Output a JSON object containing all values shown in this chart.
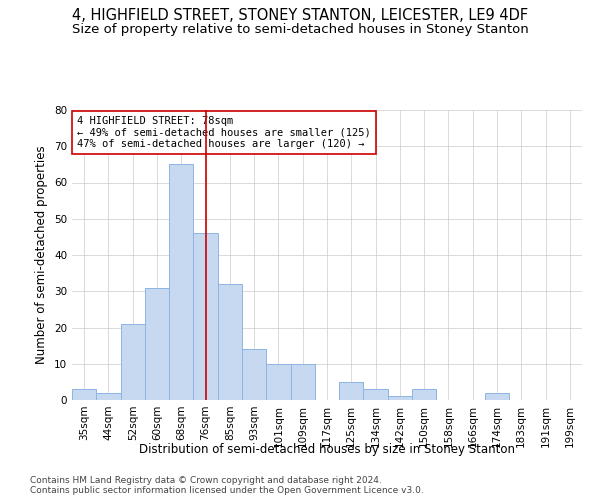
{
  "title_line1": "4, HIGHFIELD STREET, STONEY STANTON, LEICESTER, LE9 4DF",
  "title_line2": "Size of property relative to semi-detached houses in Stoney Stanton",
  "xlabel": "Distribution of semi-detached houses by size in Stoney Stanton",
  "ylabel": "Number of semi-detached properties",
  "categories": [
    "35sqm",
    "44sqm",
    "52sqm",
    "60sqm",
    "68sqm",
    "76sqm",
    "85sqm",
    "93sqm",
    "101sqm",
    "109sqm",
    "117sqm",
    "125sqm",
    "134sqm",
    "142sqm",
    "150sqm",
    "158sqm",
    "166sqm",
    "174sqm",
    "183sqm",
    "191sqm",
    "199sqm"
  ],
  "values": [
    3,
    2,
    21,
    31,
    65,
    46,
    32,
    14,
    10,
    10,
    0,
    5,
    3,
    1,
    3,
    0,
    0,
    2,
    0,
    0,
    0
  ],
  "bar_color": "#c6d9f0",
  "bar_edge_color": "#8db4e2",
  "bar_width": 1.0,
  "ylim": [
    0,
    80
  ],
  "yticks": [
    0,
    10,
    20,
    30,
    40,
    50,
    60,
    70,
    80
  ],
  "property_bin_index": 5,
  "annotation_line1": "4 HIGHFIELD STREET: 78sqm",
  "annotation_line2": "← 49% of semi-detached houses are smaller (125)",
  "annotation_line3": "47% of semi-detached houses are larger (120) →",
  "vline_color": "#cc0000",
  "annotation_box_color": "#ffffff",
  "annotation_box_edge": "#cc0000",
  "footer_line1": "Contains HM Land Registry data © Crown copyright and database right 2024.",
  "footer_line2": "Contains public sector information licensed under the Open Government Licence v3.0.",
  "background_color": "#ffffff",
  "grid_color": "#cccccc",
  "title1_fontsize": 10.5,
  "title2_fontsize": 9.5,
  "axis_label_fontsize": 8.5,
  "tick_fontsize": 7.5,
  "annotation_fontsize": 7.5,
  "footer_fontsize": 6.5
}
